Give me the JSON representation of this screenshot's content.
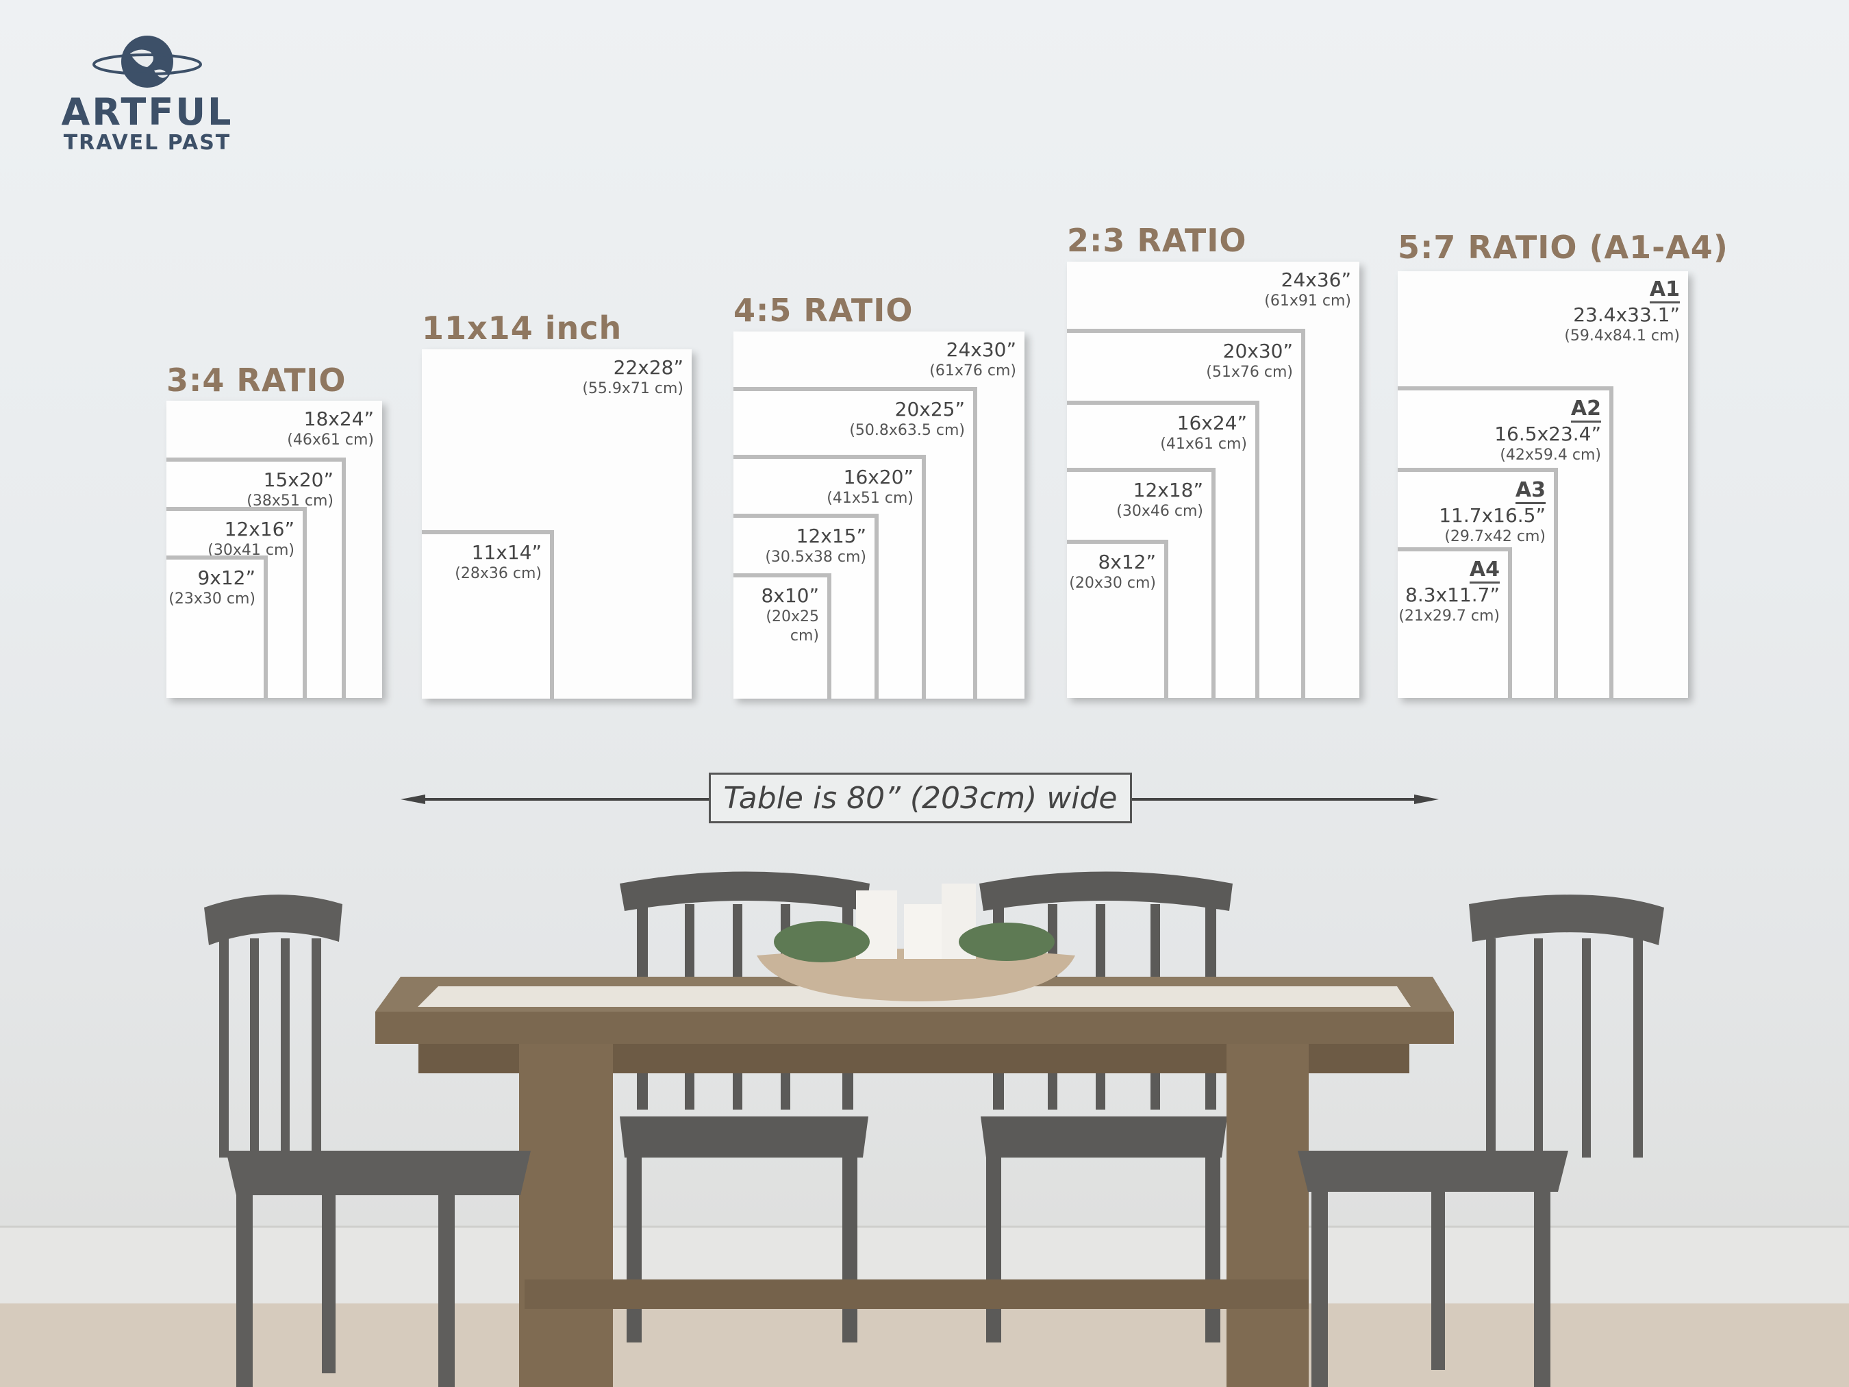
{
  "logo": {
    "line1": "ARTFUL",
    "line2": "TRAVEL PAST",
    "color": "#3d5068"
  },
  "colors": {
    "title": "#8f7760",
    "frame_border": "#bcbcbc",
    "label": "#454545"
  },
  "groups": [
    {
      "title": "3:4 RATIO",
      "frames": [
        {
          "size": "18x24”",
          "cm": "(46x61 cm)"
        },
        {
          "size": "15x20”",
          "cm": "(38x51 cm)"
        },
        {
          "size": "12x16”",
          "cm": "(30x41 cm)"
        },
        {
          "size": "9x12”",
          "cm": "(23x30 cm)"
        }
      ]
    },
    {
      "title": "11x14 inch",
      "frames": [
        {
          "size": "22x28”",
          "cm": "(55.9x71 cm)"
        },
        {
          "size": "11x14”",
          "cm": "(28x36 cm)"
        }
      ]
    },
    {
      "title": "4:5 RATIO",
      "frames": [
        {
          "size": "24x30”",
          "cm": "(61x76 cm)"
        },
        {
          "size": "20x25”",
          "cm": "(50.8x63.5 cm)"
        },
        {
          "size": "16x20”",
          "cm": "(41x51 cm)"
        },
        {
          "size": "12x15”",
          "cm": "(30.5x38 cm)"
        },
        {
          "size": "8x10”",
          "cm": "(20x25 cm)"
        }
      ]
    },
    {
      "title": "2:3 RATIO",
      "frames": [
        {
          "size": "24x36”",
          "cm": "(61x91 cm)"
        },
        {
          "size": "20x30”",
          "cm": "(51x76 cm)"
        },
        {
          "size": "16x24”",
          "cm": "(41x61 cm)"
        },
        {
          "size": "12x18”",
          "cm": "(30x46 cm)"
        },
        {
          "size": "8x12”",
          "cm": "(20x30 cm)"
        }
      ]
    },
    {
      "title": "5:7 RATIO (A1-A4)",
      "frames": [
        {
          "name": "A1",
          "size": "23.4x33.1”",
          "cm": "(59.4x84.1 cm)"
        },
        {
          "name": "A2",
          "size": "16.5x23.4”",
          "cm": "(42x59.4 cm)"
        },
        {
          "name": "A3",
          "size": "11.7x16.5”",
          "cm": "(29.7x42 cm)"
        },
        {
          "name": "A4",
          "size": "8.3x11.7”",
          "cm": "(21x29.7 cm)"
        }
      ]
    }
  ],
  "caption": "Table is 80” (203cm) wide"
}
